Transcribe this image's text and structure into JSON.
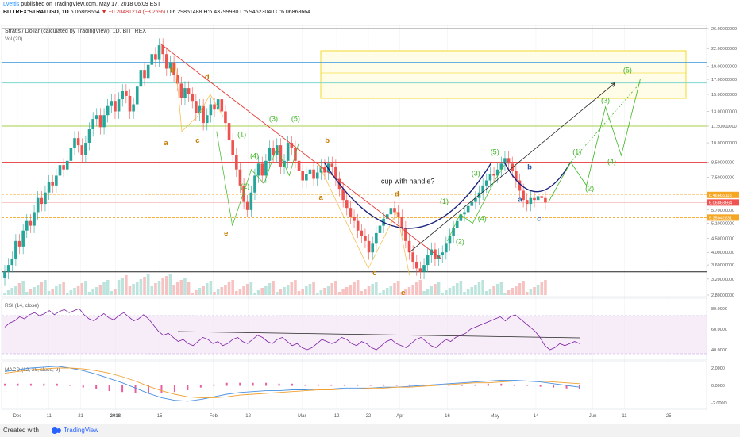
{
  "header": {
    "line1_user": "Lvettis",
    "line1_rest": "published on TradingView.com, May 17, 2018 06:09 EST",
    "line2_symbol": "BITTREX:STRATUSD, 1D",
    "line2_price": "6.06868664",
    "line2_change": "▼ −0.20481214 (−3.26%)",
    "line2_ohlc": "O:6.29851488 H:6.43799980 L:5.94623040 C:6.06868664"
  },
  "chart_title": "Stratis / Dollar (calculated by TradingView), 1D, BITTREX",
  "volume_label": "Vol (20)",
  "rsi_label": "RSI (14, close)",
  "macd_label": "MACD (12, 26, close, 9)",
  "footer": {
    "created_with": "Created with",
    "brand": "TradingView"
  },
  "colors": {
    "up": "#26a69a",
    "down": "#ef5350",
    "trend": "#e53935",
    "cup": "#1a237e",
    "wave_green": "#3cb521",
    "wave_orange": "#c77800",
    "wave_blue": "#2c5aa0",
    "rsi_line": "#7b1fa2",
    "rsi_band": "#f3e5f5",
    "macd": "#4a90e2",
    "signal": "#f0a030",
    "hist": "#e75fa0",
    "price_badge": "#ef5350",
    "support_badge": "#f5a623",
    "resist_badge": "#f5a623"
  },
  "chart_data": {
    "type": "candlestick",
    "y_scale": "log",
    "price_ticks": [
      "26.00000000",
      "22.00000000",
      "19.00000000",
      "17.00000000",
      "15.00000000",
      "13.00000000",
      "11.50000000",
      "10.00000000",
      "8.50000000",
      "7.50000000",
      "6.50000000",
      "5.70000000",
      "5.10000000",
      "4.50000000",
      "4.00000000",
      "3.60000000",
      "3.20000000",
      "2.80000000"
    ],
    "price_badges": [
      {
        "label": "6.46665118",
        "kind": "resist"
      },
      {
        "label": "6.06868664",
        "kind": "price"
      },
      {
        "label": "5.35042831",
        "kind": "support"
      }
    ],
    "x_ticks": [
      "Dec",
      "11",
      "21",
      "2018",
      "15",
      "Feb",
      "12",
      "Mar",
      "12",
      "22",
      "Apr",
      "16",
      "May",
      "14",
      "Jun",
      "11",
      "25"
    ],
    "x_tick_dates": [
      "2017-12-01",
      "2017-12-11",
      "2017-12-21",
      "2018-01-01",
      "2018-01-15",
      "2018-02-01",
      "2018-02-12",
      "2018-03-01",
      "2018-03-12",
      "2018-03-22",
      "2018-04-01",
      "2018-04-16",
      "2018-05-01",
      "2018-05-14",
      "2018-06-01",
      "2018-06-11",
      "2018-06-25"
    ],
    "date_range": [
      "2017-11-27",
      "2018-07-06"
    ],
    "rsi_ticks": [
      "80.0000",
      "60.0000",
      "40.0000"
    ],
    "macd_ticks": [
      "2.0000",
      "0.0000",
      "-2.0000"
    ],
    "closes": [
      3.4,
      3.6,
      3.8,
      4.4,
      4.2,
      4.8,
      5.2,
      5.0,
      5.6,
      6.3,
      6.0,
      6.6,
      7.2,
      7.0,
      7.6,
      8.3,
      8.0,
      8.6,
      9.6,
      10.4,
      9.8,
      9.0,
      10.0,
      11.2,
      12.2,
      12.6,
      11.4,
      12.6,
      13.6,
      14.2,
      13.0,
      14.4,
      15.4,
      14.8,
      13.0,
      13.8,
      16.0,
      18.4,
      17.2,
      19.2,
      21.0,
      20.0,
      22.6,
      21.0,
      18.6,
      19.6,
      17.6,
      16.4,
      14.6,
      15.8,
      15.0,
      14.2,
      12.8,
      13.6,
      11.8,
      12.6,
      13.8,
      13.2,
      14.4,
      13.0,
      11.8,
      10.2,
      9.0,
      8.0,
      7.0,
      6.1,
      5.7,
      6.6,
      7.6,
      8.4,
      7.6,
      8.6,
      9.6,
      9.0,
      9.8,
      8.2,
      8.6,
      10.0,
      9.6,
      8.6,
      7.9,
      7.3,
      7.7,
      8.0,
      7.4,
      7.8,
      8.2,
      7.8,
      8.4,
      8.2,
      7.4,
      6.8,
      6.2,
      5.8,
      5.4,
      5.2,
      4.8,
      4.6,
      4.4,
      4.0,
      4.3,
      4.7,
      5.0,
      5.3,
      5.5,
      5.8,
      5.6,
      5.4,
      4.9,
      4.4,
      4.0,
      3.7,
      3.5,
      3.4,
      3.6,
      3.9,
      4.1,
      3.8,
      3.9,
      4.0,
      4.3,
      4.6,
      4.9,
      5.2,
      5.5,
      5.6,
      5.9,
      6.1,
      6.3,
      6.6,
      7.0,
      7.3,
      7.7,
      7.6,
      8.0,
      8.4,
      8.8,
      8.4,
      7.9,
      7.3,
      6.7,
      6.2,
      6.0,
      6.3,
      6.2,
      6.4,
      6.3,
      6.07
    ],
    "rsi": [
      62,
      66,
      68,
      72,
      70,
      74,
      76,
      73,
      75,
      78,
      74,
      77,
      79,
      76,
      78,
      80,
      74,
      70,
      68,
      72,
      75,
      71,
      69,
      73,
      76,
      72,
      68,
      70,
      74,
      70,
      64,
      58,
      54,
      56,
      52,
      48,
      50,
      46,
      44,
      48,
      52,
      50,
      46,
      48,
      44,
      46,
      50,
      52,
      48,
      46,
      50,
      54,
      52,
      48,
      46,
      50,
      52,
      48,
      44,
      46,
      42,
      40,
      42,
      46,
      50,
      48,
      46,
      48,
      52,
      50,
      46,
      44,
      48,
      46,
      42,
      40,
      44,
      48,
      50,
      46,
      44,
      42,
      46,
      50,
      52,
      48,
      44,
      42,
      46,
      50,
      48,
      52,
      54,
      56,
      60,
      62,
      64,
      66,
      68,
      70,
      72,
      68,
      72,
      74,
      70,
      66,
      62,
      58,
      52,
      44,
      40,
      42,
      46,
      44,
      46,
      48,
      46
    ],
    "macd": [
      1.6,
      1.8,
      2.0,
      2.1,
      2.2,
      2.0,
      1.7,
      1.3,
      0.8,
      0.3,
      -0.3,
      -0.9,
      -1.4,
      -1.7,
      -1.8,
      -1.6,
      -1.3,
      -1.0,
      -0.8,
      -0.7,
      -0.6,
      -0.6,
      -0.5,
      -0.5,
      -0.4,
      -0.4,
      -0.3,
      -0.3,
      -0.3,
      -0.2,
      -0.2,
      -0.1,
      0.0,
      0.1,
      0.2,
      0.3,
      0.4,
      0.5,
      0.6,
      0.6,
      0.5,
      0.4,
      0.2,
      0.0,
      -0.2
    ],
    "signal": [
      1.4,
      1.6,
      1.8,
      1.9,
      2.0,
      2.0,
      1.9,
      1.7,
      1.4,
      1.0,
      0.5,
      -0.1,
      -0.6,
      -1.0,
      -1.3,
      -1.4,
      -1.4,
      -1.3,
      -1.1,
      -1.0,
      -0.9,
      -0.8,
      -0.7,
      -0.6,
      -0.5,
      -0.5,
      -0.4,
      -0.4,
      -0.3,
      -0.3,
      -0.2,
      -0.2,
      -0.1,
      0.0,
      0.1,
      0.2,
      0.3,
      0.3,
      0.4,
      0.5,
      0.5,
      0.5,
      0.4,
      0.3,
      0.2
    ],
    "annotations": {
      "cup_label": "cup with handle?",
      "waves": [
        {
          "text": "(1)",
          "color": "green"
        },
        {
          "text": "(2)",
          "color": "green"
        },
        {
          "text": "(3)",
          "color": "green"
        },
        {
          "text": "(4)",
          "color": "green"
        },
        {
          "text": "(5)",
          "color": "green"
        },
        {
          "text": "(1)",
          "color": "green"
        },
        {
          "text": "(2)",
          "color": "green"
        },
        {
          "text": "(3)",
          "color": "green"
        },
        {
          "text": "(4)",
          "color": "green"
        },
        {
          "text": "(5)",
          "color": "green"
        },
        {
          "text": "(1)",
          "color": "green"
        },
        {
          "text": "(2)",
          "color": "green"
        },
        {
          "text": "(3)",
          "color": "green"
        },
        {
          "text": "(4)",
          "color": "green"
        },
        {
          "text": "(5)",
          "color": "green"
        },
        {
          "text": "a",
          "color": "orange"
        },
        {
          "text": "b",
          "color": "orange"
        },
        {
          "text": "c",
          "color": "orange"
        },
        {
          "text": "d",
          "color": "orange"
        },
        {
          "text": "e",
          "color": "orange"
        },
        {
          "text": "a",
          "color": "orange"
        },
        {
          "text": "b",
          "color": "orange"
        },
        {
          "text": "c",
          "color": "orange"
        },
        {
          "text": "d",
          "color": "orange"
        },
        {
          "text": "e",
          "color": "orange"
        },
        {
          "text": "a",
          "color": "blue"
        },
        {
          "text": "b",
          "color": "blue"
        },
        {
          "text": "c",
          "color": "blue"
        }
      ]
    }
  }
}
